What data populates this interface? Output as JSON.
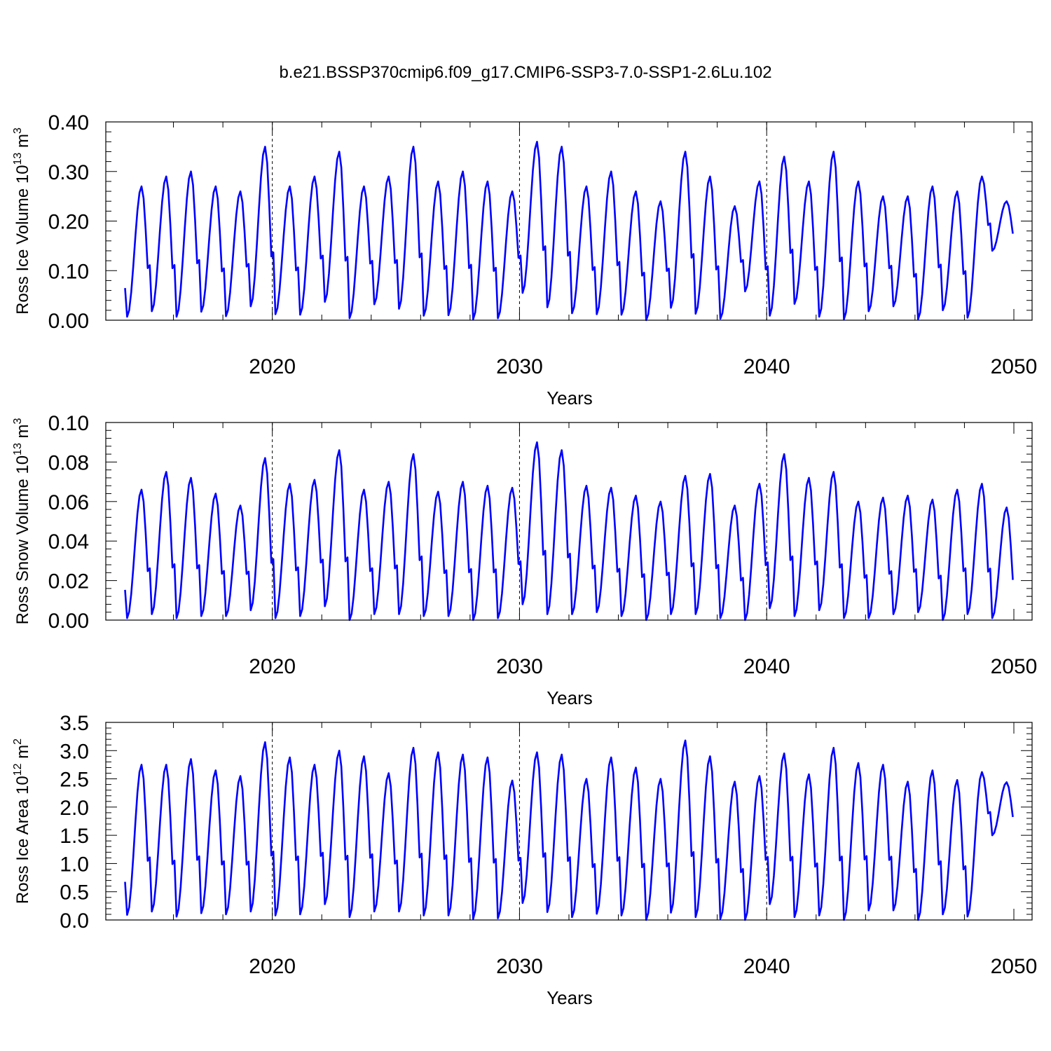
{
  "title": "b.e21.BSSP370cmip6.f09_g17.CMIP6-SSP3-7.0-SSP1-2.6Lu.102",
  "colors": {
    "series": "#0000ff",
    "axis": "#000000",
    "refline": "#000000"
  },
  "chart_data": [
    {
      "type": "line",
      "ylabel": "Ross Ice Volume 10",
      "ylabel_exp": "13",
      "ylabel_unit": "m",
      "ylabel_unit_exp": "3",
      "xlabel": "Years",
      "xlim": [
        2014.0,
        2050.0
      ],
      "ylim": [
        0.0,
        0.4
      ],
      "yticks": [
        "0.00",
        "0.10",
        "0.20",
        "0.30",
        "0.40"
      ],
      "yticks_values": [
        0.0,
        0.1,
        0.2,
        0.3,
        0.4
      ],
      "xticks": [
        "2020",
        "2030",
        "2040",
        "2050"
      ],
      "xticks_values": [
        2020,
        2030,
        2040,
        2050
      ],
      "reference_lines_x": [
        2020,
        2030,
        2040
      ],
      "grid": false,
      "series": [
        {
          "x_start": 2014.0417,
          "x_step": 0.083333,
          "peak_month": 8,
          "peaks": [
            0.27,
            0.29,
            0.3,
            0.27,
            0.26,
            0.35,
            0.27,
            0.29,
            0.34,
            0.27,
            0.29,
            0.35,
            0.28,
            0.3,
            0.28,
            0.26,
            0.36,
            0.35,
            0.27,
            0.3,
            0.26,
            0.24,
            0.34,
            0.29,
            0.23,
            0.28,
            0.33,
            0.28,
            0.34,
            0.28,
            0.25,
            0.25,
            0.27,
            0.26,
            0.29,
            0.24
          ],
          "troughs": [
            0.007,
            0.018,
            0.007,
            0.017,
            0.008,
            0.028,
            0.012,
            0.011,
            0.037,
            0.004,
            0.032,
            0.023,
            0.009,
            0.01,
            0.002,
            0.004,
            0.055,
            0.026,
            0.014,
            0.012,
            0.011,
            0.0,
            0.025,
            0.013,
            0.003,
            0.058,
            0.009,
            0.033,
            0.007,
            0.002,
            0.018,
            0.028,
            0.002,
            0.02,
            0.005,
            0.14
          ]
        }
      ]
    },
    {
      "type": "line",
      "ylabel": "Ross Snow Volume 10",
      "ylabel_exp": "13",
      "ylabel_unit": "m",
      "ylabel_unit_exp": "3",
      "xlabel": "Years",
      "xlim": [
        2014.0,
        2050.0
      ],
      "ylim": [
        0.0,
        0.1
      ],
      "yticks": [
        "0.00",
        "0.02",
        "0.04",
        "0.06",
        "0.08",
        "0.10"
      ],
      "yticks_values": [
        0.0,
        0.02,
        0.04,
        0.06,
        0.08,
        0.1
      ],
      "xticks": [
        "2020",
        "2030",
        "2040",
        "2050"
      ],
      "xticks_values": [
        2020,
        2030,
        2040,
        2050
      ],
      "reference_lines_x": [
        2020,
        2030,
        2040
      ],
      "grid": false,
      "series": [
        {
          "x_start": 2014.0417,
          "x_step": 0.083333,
          "peak_month": 8,
          "peaks": [
            0.066,
            0.075,
            0.072,
            0.064,
            0.058,
            0.082,
            0.069,
            0.071,
            0.086,
            0.066,
            0.07,
            0.084,
            0.065,
            0.07,
            0.068,
            0.067,
            0.09,
            0.086,
            0.068,
            0.067,
            0.063,
            0.06,
            0.073,
            0.074,
            0.058,
            0.069,
            0.084,
            0.072,
            0.075,
            0.06,
            0.062,
            0.063,
            0.061,
            0.066,
            0.069,
            0.057
          ],
          "troughs": [
            0.001,
            0.003,
            0.001,
            0.002,
            0.002,
            0.005,
            0.001,
            0.002,
            0.007,
            0.0,
            0.003,
            0.003,
            0.002,
            0.002,
            0.0,
            0.001,
            0.008,
            0.003,
            0.003,
            0.004,
            0.002,
            0.0,
            0.003,
            0.003,
            0.001,
            0.0,
            0.006,
            0.002,
            0.005,
            0.001,
            0.001,
            0.003,
            0.004,
            0.0,
            0.003,
            0.001
          ]
        }
      ]
    },
    {
      "type": "line",
      "ylabel": "Ross Ice Area 10",
      "ylabel_exp": "12",
      "ylabel_unit": "m",
      "ylabel_unit_exp": "2",
      "xlabel": "Years",
      "xlim": [
        2014.0,
        2050.0
      ],
      "ylim": [
        0.0,
        3.5
      ],
      "yticks": [
        "0.0",
        "0.5",
        "1.0",
        "1.5",
        "2.0",
        "2.5",
        "3.0",
        "3.5"
      ],
      "yticks_values": [
        0.0,
        0.5,
        1.0,
        1.5,
        2.0,
        2.5,
        3.0,
        3.5
      ],
      "xticks": [
        "2020",
        "2030",
        "2040",
        "2050"
      ],
      "xticks_values": [
        2020,
        2030,
        2040,
        2050
      ],
      "reference_lines_x": [
        2020,
        2030,
        2040
      ],
      "grid": false,
      "series": [
        {
          "x_start": 2014.0417,
          "x_step": 0.083333,
          "peak_month": 8,
          "peaks": [
            2.75,
            2.75,
            2.85,
            2.65,
            2.55,
            3.15,
            2.88,
            2.75,
            3.0,
            2.9,
            2.6,
            3.05,
            2.97,
            2.93,
            2.88,
            2.47,
            2.97,
            2.93,
            2.5,
            2.88,
            2.7,
            2.5,
            3.18,
            2.9,
            2.45,
            2.55,
            2.95,
            2.58,
            3.05,
            2.78,
            2.75,
            2.45,
            2.65,
            2.48,
            2.62,
            2.44
          ],
          "troughs": [
            0.09,
            0.15,
            0.06,
            0.12,
            0.1,
            0.15,
            0.08,
            0.1,
            0.28,
            0.05,
            0.15,
            0.15,
            0.08,
            0.08,
            0.02,
            0.03,
            0.3,
            0.14,
            0.05,
            0.11,
            0.08,
            0.0,
            0.13,
            0.05,
            0.02,
            0.0,
            0.28,
            0.05,
            0.08,
            0.0,
            0.17,
            0.17,
            0.0,
            0.1,
            0.06,
            1.5
          ]
        }
      ]
    }
  ]
}
